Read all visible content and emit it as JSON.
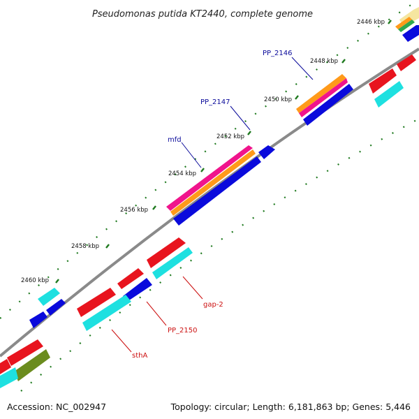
{
  "title": "Pseudomonas putida KT2440, complete genome",
  "footer": {
    "accession": "Accession: NC_002947",
    "summary": "Topology: circular; Length: 6,181,863 bp; Genes: 5,446"
  },
  "colors": {
    "backbone": "#8a8a8a",
    "tick": "#1f7a1f",
    "forward_cds": "#0a0adc",
    "reverse_cds": "#e8141e",
    "cyan": "#1ee0e0",
    "orange": "#ff9a1a",
    "magenta": "#f0148c",
    "olive": "#6b8c1e",
    "forward_label": "#0a0a9a",
    "reverse_label": "#cc1010"
  },
  "ticks": [
    {
      "label": "2446 kbp"
    },
    {
      "label": "2448 kbp"
    },
    {
      "label": "2450 kbp"
    },
    {
      "label": "2452 kbp"
    },
    {
      "label": "2454 kbp"
    },
    {
      "label": "2456 kbp"
    },
    {
      "label": "2458 kbp"
    },
    {
      "label": "2460 kbp"
    }
  ],
  "gene_labels": [
    {
      "name": "PP_2146",
      "strand": "forward"
    },
    {
      "name": "PP_2147",
      "strand": "forward"
    },
    {
      "name": "mfd",
      "strand": "forward"
    },
    {
      "name": "gap-2",
      "strand": "reverse"
    },
    {
      "name": "PP_2150",
      "strand": "reverse"
    },
    {
      "name": "sthA",
      "strand": "reverse"
    }
  ]
}
